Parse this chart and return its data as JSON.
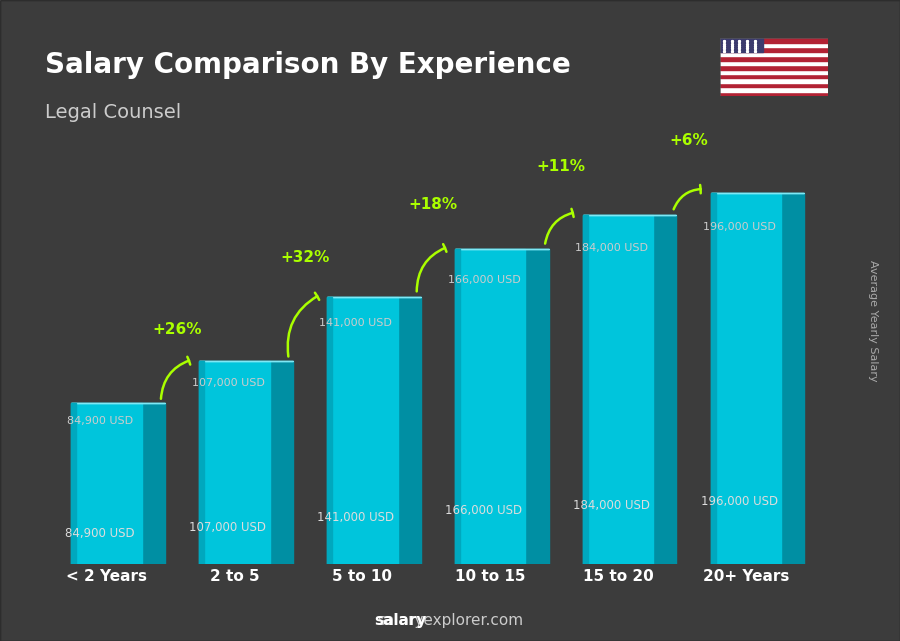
{
  "title": "Salary Comparison By Experience",
  "subtitle": "Legal Counsel",
  "categories": [
    "< 2 Years",
    "2 to 5",
    "5 to 10",
    "10 to 15",
    "15 to 20",
    "20+ Years"
  ],
  "values": [
    84900,
    107000,
    141000,
    166000,
    184000,
    196000
  ],
  "labels": [
    "84,900 USD",
    "107,000 USD",
    "141,000 USD",
    "166,000 USD",
    "184,000 USD",
    "196,000 USD"
  ],
  "pct_changes": [
    "+26%",
    "+32%",
    "+18%",
    "+11%",
    "+6%"
  ],
  "bar_color_face": "#00bcd4",
  "bar_color_light": "#4dd9ec",
  "bar_color_dark": "#0097a7",
  "bar_color_top": "#80deea",
  "background_color": "#2a2a2a",
  "title_color": "#ffffff",
  "subtitle_color": "#e0e0e0",
  "label_color": "#dddddd",
  "pct_color": "#aaff00",
  "ylabel_text": "Average Yearly Salary",
  "footer_text": "salaryexplorer.com",
  "ylim": [
    0,
    230000
  ]
}
